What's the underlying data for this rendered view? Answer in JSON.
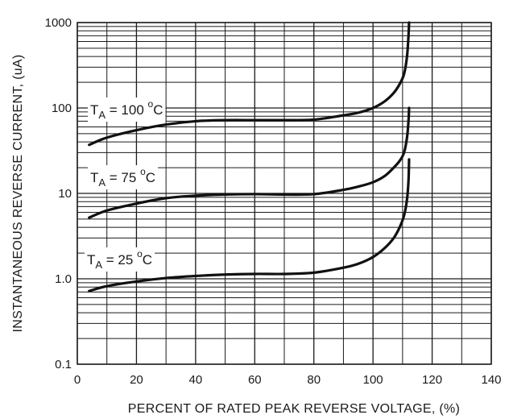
{
  "chart_data": {
    "type": "line",
    "xlabel": "PERCENT OF RATED PEAK REVERSE VOLTAGE, (%)",
    "ylabel": "INSTANTANEOUS REVERSE CURRENT, (uA)",
    "xlim": [
      0,
      140
    ],
    "ylim": [
      0.1,
      1000
    ],
    "yscale": "log",
    "grid": true,
    "x_ticks": [
      "0",
      "20",
      "40",
      "60",
      "80",
      "100",
      "120",
      "140"
    ],
    "y_ticks": [
      "0.1",
      "1.0",
      "10",
      "100",
      "1000"
    ],
    "series": [
      {
        "name": "TA = 100 °C",
        "label": {
          "main": "T",
          "sub": "A",
          "mid": " = 100 ",
          "sup": "o",
          "unit": "C"
        },
        "points": [
          [
            4,
            37
          ],
          [
            10,
            45
          ],
          [
            20,
            55
          ],
          [
            30,
            64
          ],
          [
            40,
            70
          ],
          [
            50,
            72
          ],
          [
            60,
            72
          ],
          [
            70,
            72
          ],
          [
            80,
            73
          ],
          [
            90,
            82
          ],
          [
            95,
            88
          ],
          [
            100,
            100
          ],
          [
            104,
            120
          ],
          [
            107,
            150
          ],
          [
            109,
            190
          ],
          [
            110.5,
            250
          ],
          [
            111.5,
            400
          ],
          [
            112,
            700
          ],
          [
            112.2,
            1000
          ]
        ]
      },
      {
        "name": "TA = 75 °C",
        "label": {
          "main": "T",
          "sub": "A",
          "mid": " = 75 ",
          "sup": "o",
          "unit": "C"
        },
        "points": [
          [
            4,
            5.2
          ],
          [
            10,
            6.3
          ],
          [
            20,
            7.6
          ],
          [
            30,
            8.8
          ],
          [
            40,
            9.4
          ],
          [
            50,
            9.7
          ],
          [
            60,
            9.8
          ],
          [
            70,
            9.7
          ],
          [
            80,
            9.8
          ],
          [
            90,
            11
          ],
          [
            95,
            12
          ],
          [
            100,
            13.5
          ],
          [
            104,
            16
          ],
          [
            107,
            20
          ],
          [
            109,
            24
          ],
          [
            110.5,
            30
          ],
          [
            111.5,
            45
          ],
          [
            112,
            70
          ],
          [
            112.2,
            100
          ]
        ]
      },
      {
        "name": "TA = 25 °C",
        "label": {
          "main": "T",
          "sub": "A",
          "mid": " = 25 ",
          "sup": "o",
          "unit": "C"
        },
        "points": [
          [
            4,
            0.72
          ],
          [
            10,
            0.82
          ],
          [
            20,
            0.93
          ],
          [
            30,
            1.02
          ],
          [
            40,
            1.08
          ],
          [
            50,
            1.12
          ],
          [
            60,
            1.14
          ],
          [
            70,
            1.14
          ],
          [
            80,
            1.18
          ],
          [
            90,
            1.35
          ],
          [
            95,
            1.5
          ],
          [
            100,
            1.8
          ],
          [
            104,
            2.3
          ],
          [
            107,
            3.0
          ],
          [
            109,
            4.0
          ],
          [
            110.5,
            5.5
          ],
          [
            111.5,
            8.5
          ],
          [
            112,
            14
          ],
          [
            112.2,
            25
          ]
        ]
      }
    ]
  }
}
